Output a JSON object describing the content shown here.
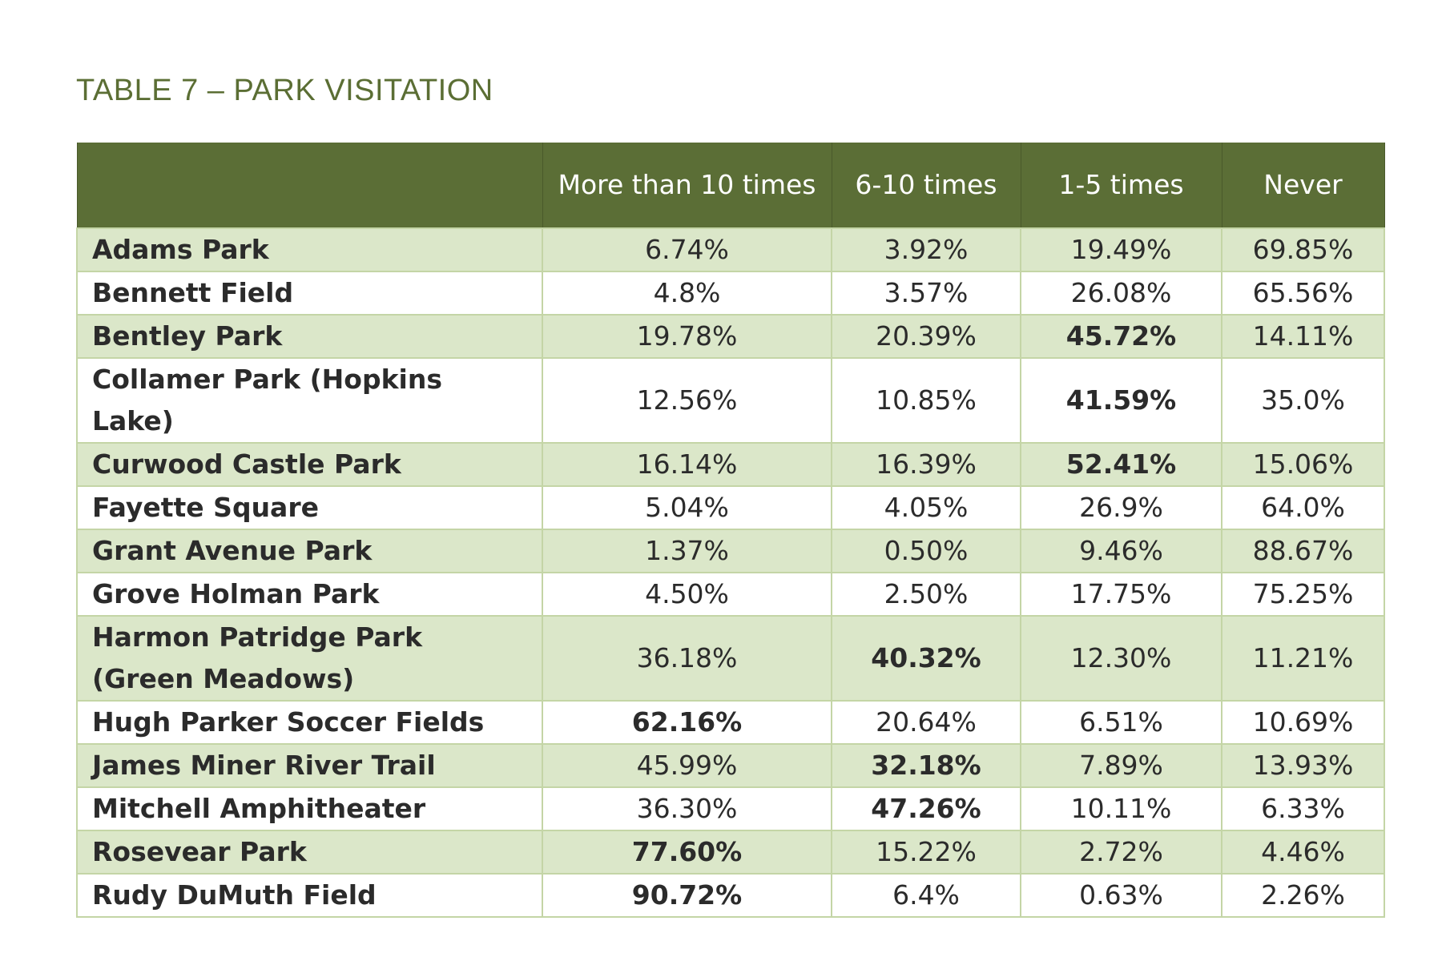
{
  "title": "TABLE 7 – PARK VISITATION",
  "columns": [
    "",
    "More than 10 times",
    "6-10 times",
    "1-5 times",
    "Never"
  ],
  "rows": [
    {
      "park": "Adams Park",
      "values": [
        "6.74%",
        "3.92%",
        "19.49%",
        "69.85%"
      ],
      "bold": [
        false,
        false,
        false,
        false
      ]
    },
    {
      "park": "Bennett Field",
      "values": [
        "4.8%",
        "3.57%",
        "26.08%",
        "65.56%"
      ],
      "bold": [
        false,
        false,
        false,
        false
      ]
    },
    {
      "park": "Bentley Park",
      "values": [
        "19.78%",
        "20.39%",
        "45.72%",
        "14.11%"
      ],
      "bold": [
        false,
        false,
        true,
        false
      ]
    },
    {
      "park": "Collamer Park (Hopkins Lake)",
      "values": [
        "12.56%",
        "10.85%",
        "41.59%",
        "35.0%"
      ],
      "bold": [
        false,
        false,
        true,
        false
      ]
    },
    {
      "park": "Curwood Castle Park",
      "values": [
        "16.14%",
        "16.39%",
        "52.41%",
        "15.06%"
      ],
      "bold": [
        false,
        false,
        true,
        false
      ]
    },
    {
      "park": "Fayette Square",
      "values": [
        "5.04%",
        "4.05%",
        "26.9%",
        "64.0%"
      ],
      "bold": [
        false,
        false,
        false,
        false
      ]
    },
    {
      "park": "Grant Avenue Park",
      "values": [
        "1.37%",
        "0.50%",
        "9.46%",
        "88.67%"
      ],
      "bold": [
        false,
        false,
        false,
        false
      ]
    },
    {
      "park": "Grove Holman Park",
      "values": [
        "4.50%",
        "2.50%",
        "17.75%",
        "75.25%"
      ],
      "bold": [
        false,
        false,
        false,
        false
      ]
    },
    {
      "park": "Harmon Patridge Park (Green Meadows)",
      "values": [
        "36.18%",
        "40.32%",
        "12.30%",
        "11.21%"
      ],
      "bold": [
        false,
        true,
        false,
        false
      ]
    },
    {
      "park": "Hugh Parker Soccer Fields",
      "values": [
        "62.16%",
        "20.64%",
        "6.51%",
        "10.69%"
      ],
      "bold": [
        true,
        false,
        false,
        false
      ]
    },
    {
      "park": "James Miner River Trail",
      "values": [
        "45.99%",
        "32.18%",
        "7.89%",
        "13.93%"
      ],
      "bold": [
        false,
        true,
        false,
        false
      ]
    },
    {
      "park": "Mitchell Amphitheater",
      "values": [
        "36.30%",
        "47.26%",
        "10.11%",
        "6.33%"
      ],
      "bold": [
        false,
        true,
        false,
        false
      ]
    },
    {
      "park": "Rosevear Park",
      "values": [
        "77.60%",
        "15.22%",
        "2.72%",
        "4.46%"
      ],
      "bold": [
        true,
        false,
        false,
        false
      ]
    },
    {
      "park": "Rudy DuMuth Field",
      "values": [
        "90.72%",
        "6.4%",
        "0.63%",
        "2.26%"
      ],
      "bold": [
        true,
        false,
        false,
        false
      ]
    }
  ]
}
